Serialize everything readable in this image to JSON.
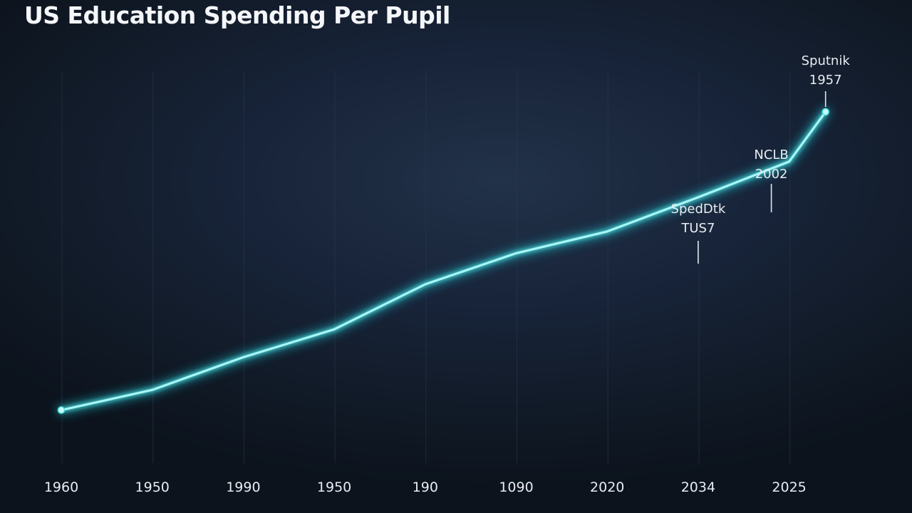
{
  "chart_data": {
    "type": "line",
    "title": "US Education Spending Per Pupil",
    "xlabel": "",
    "ylabel": "",
    "x_tick_labels": [
      "1960",
      "1950",
      "1990",
      "1950",
      "190",
      "1090",
      "2020",
      "2034",
      "2025"
    ],
    "grid": {
      "vertical": true,
      "horizontal": false
    },
    "series": [
      {
        "values": [
          4.0,
          10.5,
          21.0,
          30.0,
          44.5,
          54.5,
          61.5,
          72.5,
          84.0,
          100.0
        ],
        "x_positions": [
          0,
          1,
          2,
          3,
          4,
          5,
          6,
          7,
          8,
          8.4
        ]
      }
    ],
    "ylim": [
      0,
      100
    ],
    "colors": {
      "line": "#4fe3e6",
      "glow": "#1fb8c4",
      "background": "#151f2e",
      "text": "#e8ecf1"
    },
    "annotations": [
      {
        "label_line1": "Sputnik",
        "label_line2": "1957",
        "point_index": 9
      },
      {
        "label_line1": "NCLB",
        "label_line2": "2002",
        "point_index": 8
      },
      {
        "label_line1": "SpedDtk",
        "label_line2": "TUS7",
        "point_index": 7
      }
    ]
  }
}
